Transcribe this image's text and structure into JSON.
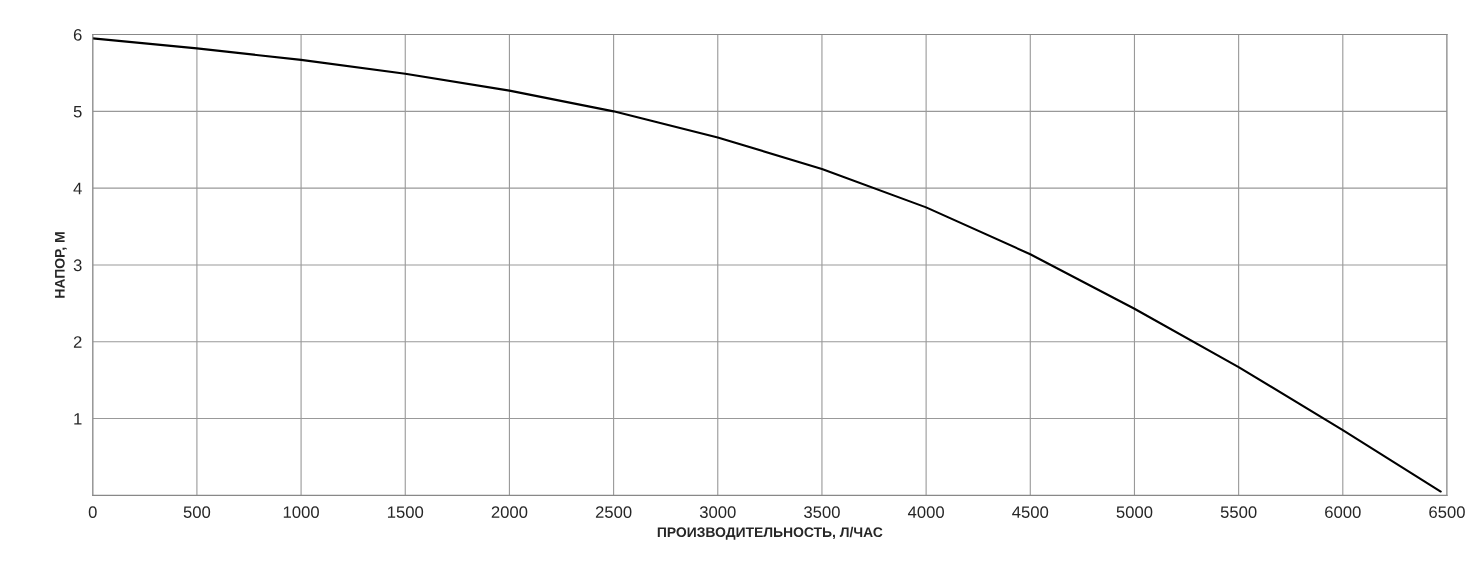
{
  "chart_data": {
    "type": "line",
    "xlabel": "ПРОИЗВОДИТЕЛЬНОСТЬ, Л/ЧАС",
    "ylabel": "НАПОР, М",
    "x": [
      0,
      500,
      1000,
      1500,
      2000,
      2500,
      3000,
      3500,
      4000,
      4500,
      5000,
      5500,
      6000,
      6470
    ],
    "series": [
      {
        "color": "#000000",
        "values": [
          5.95,
          5.82,
          5.67,
          5.49,
          5.27,
          5.0,
          4.66,
          4.25,
          3.75,
          3.14,
          2.43,
          1.67,
          0.85,
          0.05
        ]
      }
    ],
    "xlim": [
      0,
      6500
    ],
    "xticks": [
      0,
      500,
      1000,
      1500,
      2000,
      2500,
      3000,
      3500,
      4000,
      4500,
      5000,
      5500,
      6000,
      6500
    ],
    "ylim": [
      0,
      6
    ],
    "yticks": [
      1,
      2,
      3,
      4,
      5,
      6
    ],
    "grid": true,
    "marker": "none",
    "line_style": "solid"
  }
}
